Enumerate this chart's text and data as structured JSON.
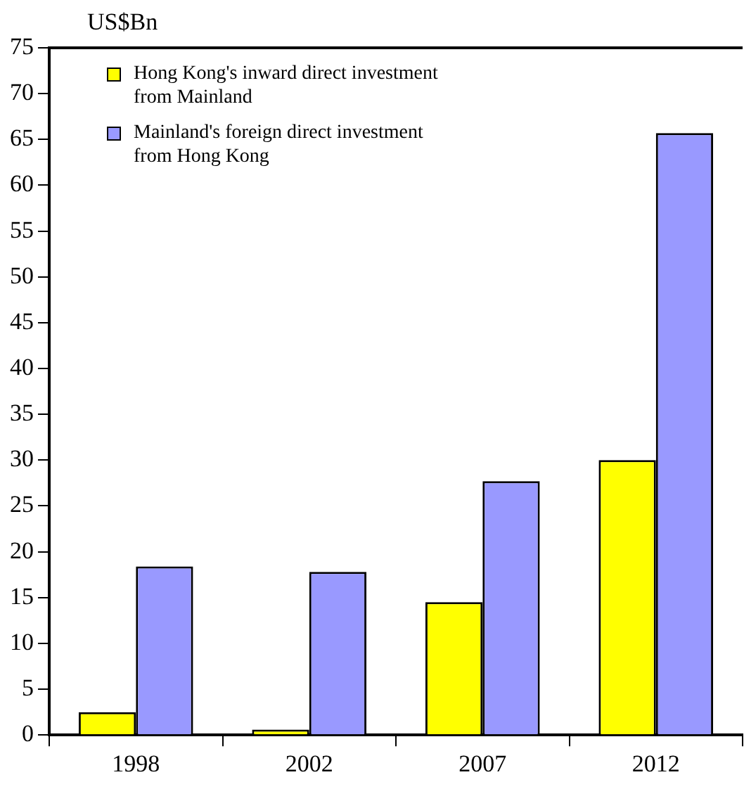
{
  "chart_data": {
    "type": "bar",
    "ylabel": "US$Bn",
    "categories": [
      "1998",
      "2002",
      "2007",
      "2012"
    ],
    "series": [
      {
        "name": "Hong Kong's inward direct investment from Mainland",
        "color": "#ffff00",
        "values": [
          2.5,
          0.6,
          14.5,
          30.0
        ]
      },
      {
        "name": "Mainland's foreign direct investment from Hong Kong",
        "color": "#9999ff",
        "values": [
          18.4,
          17.8,
          27.7,
          65.7
        ]
      }
    ],
    "ylim": [
      0,
      75
    ],
    "yticks": [
      0,
      5,
      10,
      15,
      20,
      25,
      30,
      35,
      40,
      45,
      50,
      55,
      60,
      65,
      70,
      75
    ],
    "grid": false,
    "legend": "top left"
  }
}
